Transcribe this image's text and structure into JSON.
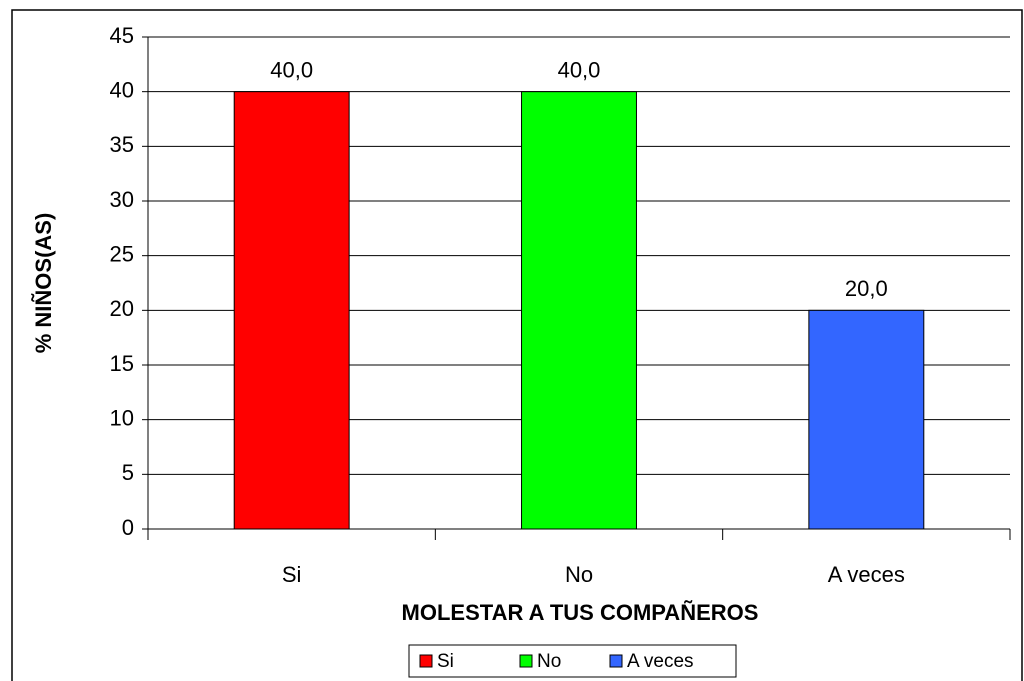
{
  "chart_data": {
    "type": "bar",
    "x_label": "MOLESTAR A TUS COMPAÑEROS",
    "y_label": "% NIÑOS(AS)",
    "categories": [
      "Si",
      "No",
      "A veces"
    ],
    "values": [
      40,
      40,
      20
    ],
    "value_labels": [
      "40,0",
      "40,0",
      "20,0"
    ],
    "colors": [
      "#ff0000",
      "#00ff00",
      "#3366ff"
    ],
    "ylim": [
      0,
      45
    ],
    "yticks": [
      0,
      5,
      10,
      15,
      20,
      25,
      30,
      35,
      40,
      45
    ],
    "grid": true,
    "legend": "bottom"
  }
}
